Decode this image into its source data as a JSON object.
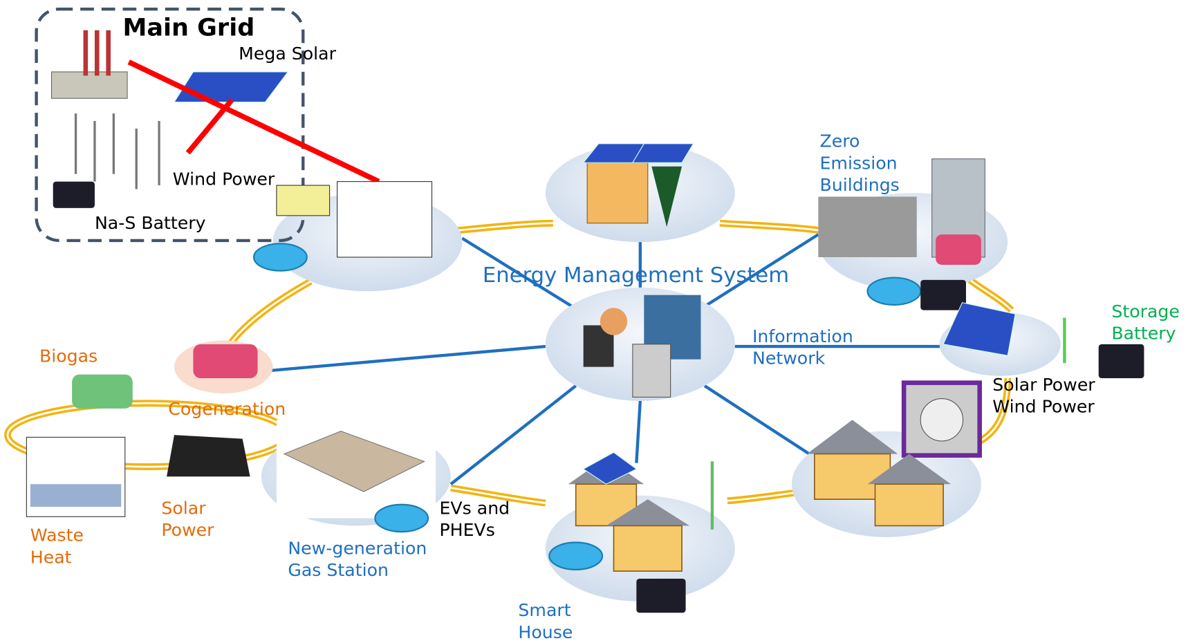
{
  "main_grid": {
    "title": "Main Grid",
    "mega_solar": "Mega Solar",
    "wind_power": "Wind Power",
    "battery": "Na-S Battery"
  },
  "center": {
    "title": "Energy Management System",
    "network": [
      "Information",
      "Network"
    ]
  },
  "labels": {
    "zero_emission": [
      "Zero",
      "Emission",
      "Buildings"
    ],
    "storage_battery": [
      "Storage",
      "Battery"
    ],
    "solar_wind": [
      "Solar Power",
      "Wind Power"
    ],
    "biogas": "Biogas",
    "cogeneration": "Cogeneration",
    "solar_power": [
      "Solar",
      "Power"
    ],
    "waste_heat": [
      "Waste",
      "Heat"
    ],
    "gas_station": [
      "New-generation",
      "Gas Station"
    ],
    "evs": [
      "EVs and",
      "PHEVs"
    ],
    "smart_house": [
      "Smart",
      "House"
    ]
  }
}
